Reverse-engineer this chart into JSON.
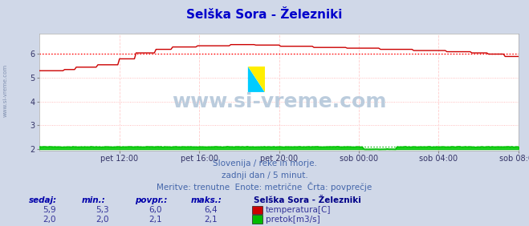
{
  "title": "Selška Sora - Železniki",
  "title_color": "#0000cc",
  "bg_color": "#d0d8e8",
  "plot_bg_color": "#ffffff",
  "grid_color_h": "#ffaaaa",
  "grid_color_v": "#ffcccc",
  "avg_line_color": "#ff0000",
  "xlim": [
    0,
    288
  ],
  "ylim": [
    1.95,
    6.85
  ],
  "yticks": [
    2,
    3,
    4,
    5,
    6
  ],
  "xtick_labels": [
    "pet 12:00",
    "pet 16:00",
    "pet 20:00",
    "sob 00:00",
    "sob 04:00",
    "sob 08:00"
  ],
  "xtick_positions": [
    48,
    96,
    144,
    192,
    240,
    288
  ],
  "temp_color": "#cc0000",
  "flow_color": "#00bb00",
  "flow_fill_color": "#00cc00",
  "temp_avg": 6.0,
  "flow_avg": 2.1,
  "subtitle1": "Slovenija / reke in morje.",
  "subtitle2": "zadnji dan / 5 minut.",
  "subtitle3": "Meritve: trenutne  Enote: metrične  Črta: povprečje",
  "subtitle_color": "#4466aa",
  "table_header": "Selška Sora - Železniki",
  "table_cols": [
    "sedaj:",
    "min.:",
    "povpr.:",
    "maks.:"
  ],
  "table_data": [
    [
      "5,9",
      "5,3",
      "6,0",
      "6,4"
    ],
    [
      "2,0",
      "2,0",
      "2,1",
      "2,1"
    ]
  ],
  "table_series": [
    "temperatura[C]",
    "pretok[m3/s]"
  ],
  "table_colors": [
    "#cc0000",
    "#00bb00"
  ],
  "watermark": "www.si-vreme.com",
  "watermark_color": "#bbccdd",
  "side_label": "www.si-vreme.com"
}
